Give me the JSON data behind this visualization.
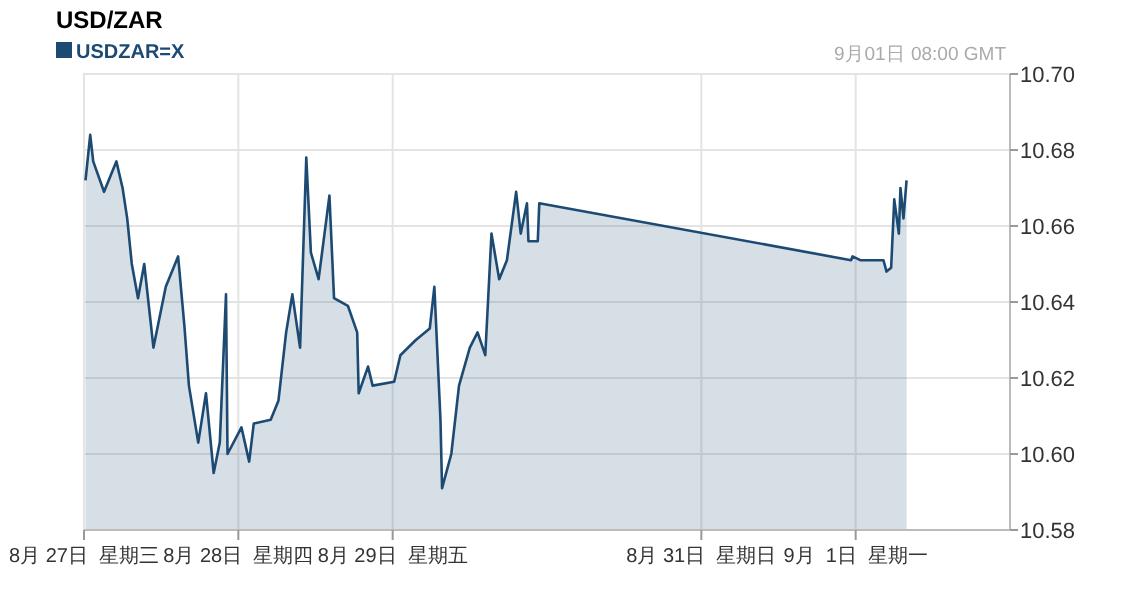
{
  "chart_data": {
    "type": "area",
    "title": "USD/ZAR",
    "annotations": [
      "9月01日 08:00 GMT"
    ],
    "legend": "top left",
    "grid": true,
    "xlim": [
      "--08-27",
      "--09-02"
    ],
    "xticks": [
      {
        "value": "--08-27",
        "label": "8月 27日  星期三"
      },
      {
        "value": "--08-28",
        "label": "8月 28日  星期四"
      },
      {
        "value": "--08-29",
        "label": "8月 29日  星期五"
      },
      {
        "value": "--08-31",
        "label": "8月 31日  星期日"
      },
      {
        "value": "--09-01",
        "label": "9月  1日  星期一"
      }
    ],
    "ylim": [
      10.58,
      10.7
    ],
    "yticks": [
      {
        "value": 10.58,
        "label": "10.58"
      },
      {
        "value": 10.6,
        "label": "10.60"
      },
      {
        "value": 10.62,
        "label": "10.62"
      },
      {
        "value": 10.64,
        "label": "10.64"
      },
      {
        "value": 10.66,
        "label": "10.66"
      },
      {
        "value": 10.68,
        "label": "10.68"
      },
      {
        "value": 10.7,
        "label": "10.70"
      }
    ],
    "series": [
      {
        "name": "USDZAR=X",
        "color": "#1d4a73",
        "x": [
          "--08-27T00:14",
          "--08-27T00:58",
          "--08-27T01:26",
          "--08-27T03:07",
          "--08-27T05:02",
          "--08-27T06:00",
          "--08-27T06:43",
          "--08-27T07:26",
          "--08-27T08:24",
          "--08-27T09:22",
          "--08-27T10:48",
          "--08-27T12:43",
          "--08-27T14:38",
          "--08-27T15:36",
          "--08-27T16:19",
          "--08-27T17:46",
          "--08-27T18:58",
          "--08-27T20:10",
          "--08-27T21:07",
          "--08-27T22:05",
          "--08-27T22:19",
          "--08-28T00:29",
          "--08-28T01:41",
          "--08-28T02:24",
          "--08-28T05:02",
          "--08-28T06:14",
          "--08-28T07:26",
          "--08-28T08:24",
          "--08-28T09:36",
          "--08-28T10:34",
          "--08-28T11:17",
          "--08-28T12:29",
          "--08-28T14:10",
          "--08-28T14:53",
          "--08-28T17:02",
          "--08-28T18:29",
          "--08-28T18:43",
          "--08-28T20:10",
          "--08-28T20:53",
          "--08-29T00:14",
          "--08-29T01:12",
          "--08-29T03:36",
          "--08-29T05:46",
          "--08-29T06:29",
          "--08-29T07:26",
          "--08-29T07:41",
          "--08-29T09:07",
          "--08-29T10:19",
          "--08-29T12:00",
          "--08-29T13:12",
          "--08-29T14:24",
          "--08-29T15:22",
          "--08-29T16:34",
          "--08-29T17:46",
          "--08-29T19:12",
          "--08-29T19:55",
          "--08-29T20:53",
          "--08-29T21:07",
          "--08-29T22:34",
          "--08-29T22:48",
          "--08-31T23:17",
          "--08-31T23:31",
          "--09-01T00:43",
          "--09-01T04:19",
          "--09-01T04:48",
          "--09-01T05:31",
          "--09-01T06:00",
          "--09-01T06:43",
          "--09-01T06:58",
          "--09-01T07:26",
          "--09-01T07:55"
        ],
        "values": [
          10.672,
          10.684,
          10.677,
          10.669,
          10.677,
          10.67,
          10.662,
          10.65,
          10.641,
          10.65,
          10.628,
          10.644,
          10.652,
          10.634,
          10.618,
          10.603,
          10.616,
          10.595,
          10.603,
          10.642,
          10.6,
          10.607,
          10.598,
          10.608,
          10.609,
          10.614,
          10.632,
          10.642,
          10.628,
          10.678,
          10.653,
          10.646,
          10.668,
          10.641,
          10.639,
          10.632,
          10.616,
          10.623,
          10.618,
          10.619,
          10.626,
          10.63,
          10.633,
          10.644,
          10.609,
          10.591,
          10.6,
          10.618,
          10.628,
          10.632,
          10.626,
          10.658,
          10.646,
          10.651,
          10.669,
          10.658,
          10.666,
          10.656,
          10.656,
          10.666,
          10.651,
          10.652,
          10.651,
          10.651,
          10.648,
          10.649,
          10.667,
          10.658,
          10.67,
          10.662,
          10.672
        ]
      }
    ]
  }
}
